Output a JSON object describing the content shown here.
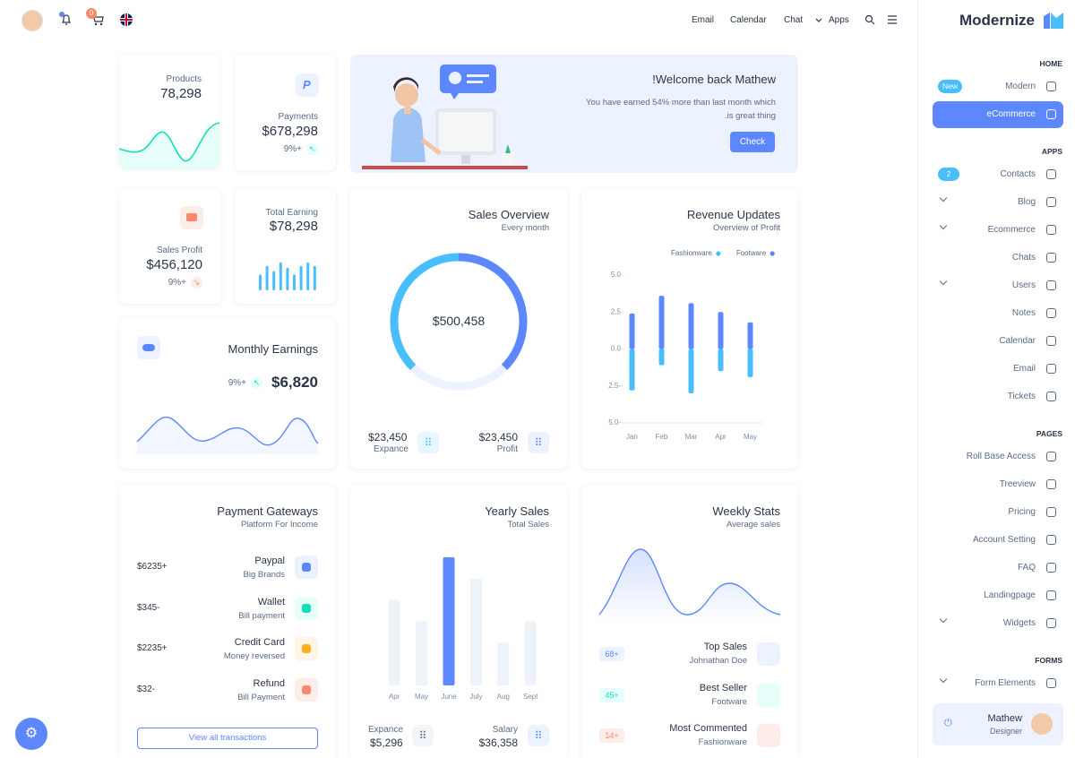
{
  "topbar": {
    "nav": [
      "Email",
      "Calendar",
      "Chat",
      "Apps"
    ],
    "cart_badge": "0"
  },
  "sidebar": {
    "brand": "Modernize",
    "sections": [
      {
        "title": "HOME",
        "items": [
          {
            "label": "Modern",
            "badge": "New"
          },
          {
            "label": "eCommerce",
            "active": true
          }
        ]
      },
      {
        "title": "APPS",
        "items": [
          {
            "label": "Contacts",
            "badge": "2"
          },
          {
            "label": "Blog",
            "expandable": true
          },
          {
            "label": "Ecommerce",
            "expandable": true
          },
          {
            "label": "Chats"
          },
          {
            "label": "Users",
            "expandable": true
          },
          {
            "label": "Notes"
          },
          {
            "label": "Calendar"
          },
          {
            "label": "Email"
          },
          {
            "label": "Tickets"
          }
        ]
      },
      {
        "title": "PAGES",
        "items": [
          {
            "label": "Roll Base Access"
          },
          {
            "label": "Treeview"
          },
          {
            "label": "Pricing"
          },
          {
            "label": "Account Setting"
          },
          {
            "label": "FAQ"
          },
          {
            "label": "Landingpage"
          },
          {
            "label": "Widgets",
            "expandable": true
          }
        ]
      },
      {
        "title": "FORMS",
        "items": [
          {
            "label": "Form Elements",
            "expandable": true
          }
        ]
      }
    ],
    "profile": {
      "name": "Mathew",
      "role": "Designer"
    }
  },
  "cards": {
    "products": {
      "label": "Products",
      "value": "78,298"
    },
    "payments": {
      "label": "Payments",
      "value": "$678,298",
      "change": "9%+"
    },
    "welcome": {
      "title": "!Welcome back Mathew",
      "text_lines": [
        "You have earned 54% more than last month which",
        ".is great thing"
      ],
      "button": "Check"
    },
    "sales_profit": {
      "label": "Sales Profit",
      "value": "$456,120",
      "change": "9%+"
    },
    "total_earning": {
      "label": "Total Earning",
      "value": "$78,298",
      "chart": {
        "type": "bar",
        "values": [
          18,
          28,
          22,
          32,
          26,
          18,
          28,
          32,
          28
        ],
        "color": "#49beff",
        "ylim": [
          0,
          35
        ]
      }
    },
    "monthly_earnings": {
      "title": "Monthly Earnings",
      "change": "9%+",
      "value": "$6,820"
    },
    "sales_overview": {
      "title": "Sales Overview",
      "subtitle": "Every month",
      "center": "$500,458",
      "chart": {
        "type": "pie",
        "values": [
          37.5,
          25,
          37.5
        ],
        "colors": [
          "#5d87ff",
          "#ecf2ff",
          "#49beff"
        ]
      },
      "stats": [
        {
          "value": "$23,450",
          "label": "Expance"
        },
        {
          "value": "$23,450",
          "label": "Profit"
        }
      ]
    },
    "revenue_updates": {
      "title": "Revenue Updates",
      "subtitle": "Overview of Profit",
      "chart": {
        "type": "bar",
        "categories": [
          "Jan",
          "Feb",
          "Mar",
          "Apr",
          "May"
        ],
        "series": [
          {
            "name": "Fashionware",
            "color": "#49beff",
            "values": [
              -2.8,
              -1.1,
              -3.0,
              -1.5,
              -1.9
            ]
          },
          {
            "name": "Footware",
            "color": "#5d87ff",
            "values": [
              2.4,
              3.6,
              3.1,
              2.5,
              1.8
            ]
          }
        ],
        "ylim": [
          -5,
          5
        ],
        "yticks": [
          {
            "value": 5,
            "label": "5.0"
          },
          {
            "value": 2.5,
            "label": "2.5"
          },
          {
            "value": 0,
            "label": "0.0"
          },
          {
            "value": -2.5,
            "label": "2.5-"
          },
          {
            "value": -5,
            "label": "5.0-"
          }
        ]
      }
    },
    "payment_gateways": {
      "title": "Payment Gateways",
      "subtitle": "Platform For Income",
      "rows": [
        {
          "name": "Paypal",
          "sub": "Big Brands",
          "amount": "$6235+"
        },
        {
          "name": "Wallet",
          "sub": "Bill payment",
          "amount": "$345-"
        },
        {
          "name": "Credit Card",
          "sub": "Money reversed",
          "amount": "$2235+"
        },
        {
          "name": "Refund",
          "sub": "Bill Payment",
          "amount": "$32-"
        }
      ],
      "button": "View all transactions"
    },
    "yearly_sales": {
      "title": "Yearly Sales",
      "subtitle": "Total Sales",
      "chart": {
        "type": "bar",
        "categories": [
          "Apr",
          "May",
          "June",
          "July",
          "Aug",
          "Sept"
        ],
        "values": [
          2,
          1.5,
          3,
          2.5,
          1,
          1.5
        ],
        "colors": [
          "#eef3fa",
          "#eef3fa",
          "#5d87ff",
          "#eef3fa",
          "#eef3fa",
          "#eef3fa"
        ],
        "ylim": [
          0,
          3
        ]
      },
      "stats": [
        {
          "label": "Expance",
          "value": "$5,296"
        },
        {
          "label": "Salary",
          "value": "$36,358"
        }
      ]
    },
    "weekly_stats": {
      "title": "Weekly Stats",
      "subtitle": "Average sales",
      "rows": [
        {
          "title": "Top Sales",
          "sub": "Johnathan Doe",
          "badge": "68+"
        },
        {
          "title": "Best Seller",
          "sub": "Footware",
          "badge": "45+"
        },
        {
          "title": "Most Commented",
          "sub": "Fashionware",
          "badge": "14+"
        }
      ]
    }
  }
}
